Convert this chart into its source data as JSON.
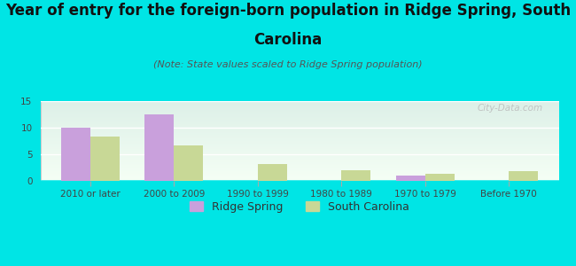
{
  "title_line1": "Year of entry for the foreign-born population in Ridge Spring, South",
  "title_line2": "Carolina",
  "subtitle": "(Note: State values scaled to Ridge Spring population)",
  "categories": [
    "2010 or later",
    "2000 to 2009",
    "1990 to 1999",
    "1980 to 1989",
    "1970 to 1979",
    "Before 1970"
  ],
  "ridge_spring": [
    10,
    12.5,
    0,
    0,
    1,
    0
  ],
  "south_carolina": [
    8.3,
    6.7,
    3.2,
    2.0,
    1.4,
    1.8
  ],
  "ridge_spring_color": "#c9a0dc",
  "south_carolina_color": "#c8d896",
  "background_color": "#00e5e5",
  "grad_top": "#ddf0e8",
  "grad_bottom": "#f5fff5",
  "ylim": [
    0,
    15
  ],
  "yticks": [
    0,
    5,
    10,
    15
  ],
  "bar_width": 0.35,
  "legend_ridge": "Ridge Spring",
  "legend_sc": "South Carolina",
  "watermark": "City-Data.com",
  "title_fontsize": 12,
  "subtitle_fontsize": 8,
  "tick_fontsize": 7.5,
  "legend_fontsize": 9
}
